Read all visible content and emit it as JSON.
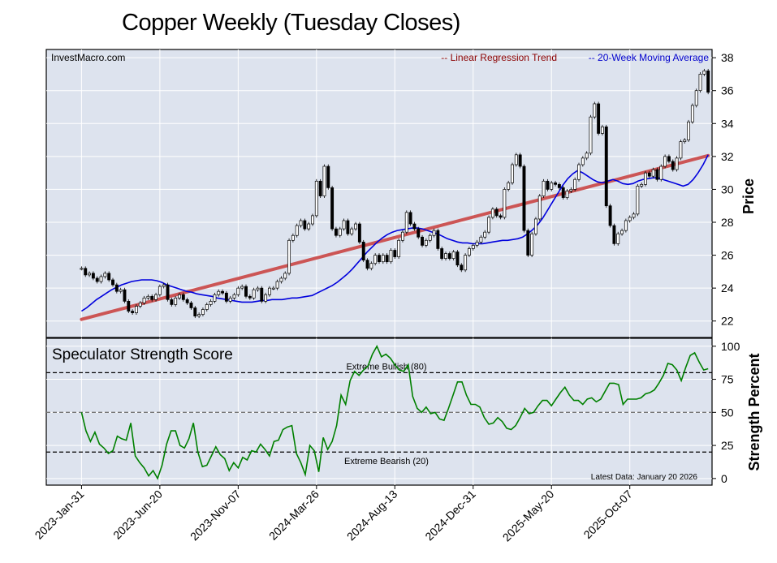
{
  "title": "Copper Weekly (Tuesday Closes)",
  "watermark": "InvestMacro.com",
  "legend": {
    "regression": "-- Linear Regression Trend",
    "moving_average": "-- 20-Week Moving Average",
    "regression_color": "#8b0000",
    "moving_average_color": "#0000cc"
  },
  "latest_data": "Latest Data: January 20 2026",
  "chart_data": [
    {
      "type": "candlestick",
      "ylabel": "Price",
      "ylim": [
        21,
        38.5
      ],
      "y_ticks": [
        22,
        24,
        26,
        28,
        30,
        32,
        34,
        36,
        38
      ],
      "x_ticks": [
        "2023-Jan-31",
        "2023-Jun-20",
        "2023-Nov-07",
        "2024-Mar-26",
        "2024-Aug-13",
        "2024-Dec-31",
        "2025-May-20",
        "2025-Oct-07"
      ],
      "x_tick_weeks": [
        0,
        20,
        40,
        60,
        80,
        100,
        120,
        140
      ],
      "x_range": [
        -9,
        161
      ],
      "closes": [
        25.2,
        24.8,
        24.9,
        24.6,
        24.4,
        24.7,
        24.9,
        24.5,
        24.2,
        23.8,
        23.9,
        23.2,
        22.6,
        22.5,
        22.9,
        23.1,
        23.4,
        23.5,
        23.3,
        23.6,
        24.1,
        24.2,
        23.3,
        23.0,
        23.4,
        23.6,
        23.3,
        23.1,
        22.8,
        22.3,
        22.4,
        22.7,
        23.0,
        23.2,
        23.6,
        23.8,
        23.7,
        23.2,
        23.4,
        23.6,
        24.0,
        24.1,
        23.5,
        23.4,
        23.9,
        24.0,
        23.2,
        23.6,
        24.0,
        24.0,
        24.4,
        24.6,
        24.9,
        26.9,
        27.2,
        27.8,
        28.1,
        27.6,
        27.9,
        28.4,
        30.5,
        29.6,
        31.4,
        30.1,
        27.6,
        27.2,
        27.6,
        28.1,
        27.3,
        27.6,
        27.9,
        26.8,
        25.7,
        25.2,
        25.5,
        26.0,
        25.6,
        26.0,
        25.6,
        26.3,
        25.9,
        26.9,
        27.4,
        28.6,
        27.9,
        27.6,
        27.1,
        26.6,
        26.9,
        27.2,
        27.5,
        26.4,
        25.8,
        26.1,
        25.8,
        26.2,
        25.4,
        25.1,
        26.0,
        26.4,
        26.6,
        26.8,
        27.1,
        27.4,
        28.3,
        28.8,
        28.4,
        28.3,
        30.0,
        30.4,
        31.5,
        32.1,
        31.4,
        27.5,
        26.0,
        27.3,
        28.2,
        29.6,
        30.5,
        30.0,
        30.4,
        30.3,
        30.1,
        29.5,
        29.9,
        30.0,
        30.6,
        31.5,
        31.9,
        32.2,
        34.4,
        35.2,
        33.4,
        33.8,
        29.0,
        27.8,
        26.7,
        27.3,
        27.5,
        28.1,
        28.3,
        28.5,
        30.2,
        30.3,
        31.0,
        30.8,
        31.2,
        30.6,
        31.4,
        32.0,
        31.7,
        31.2,
        31.9,
        32.9,
        33.0,
        34.1,
        35.1,
        36.0,
        37.0,
        37.2,
        35.9
      ],
      "moving_average": [
        22.6,
        22.8,
        23.05,
        23.3,
        23.5,
        23.7,
        23.9,
        24.05,
        24.2,
        24.3,
        24.4,
        24.45,
        24.5,
        24.5,
        24.5,
        24.45,
        24.35,
        24.2,
        24.1,
        24.0,
        23.9,
        23.8,
        23.75,
        23.65,
        23.6,
        23.55,
        23.5,
        23.4,
        23.35,
        23.3,
        23.25,
        23.2,
        23.15,
        23.15,
        23.15,
        23.2,
        23.25,
        23.25,
        23.3,
        23.3,
        23.3,
        23.35,
        23.4,
        23.4,
        23.45,
        23.5,
        23.55,
        23.7,
        23.85,
        24.0,
        24.15,
        24.35,
        24.6,
        24.85,
        25.15,
        25.5,
        25.85,
        26.2,
        26.5,
        26.8,
        27.05,
        27.25,
        27.4,
        27.5,
        27.55,
        27.6,
        27.65,
        27.65,
        27.6,
        27.5,
        27.4,
        27.3,
        27.15,
        27.0,
        26.9,
        26.8,
        26.75,
        26.75,
        26.7,
        26.7,
        26.7,
        26.75,
        26.8,
        26.85,
        26.9,
        26.9,
        26.95,
        27.0,
        27.1,
        27.3,
        27.55,
        27.85,
        28.25,
        28.75,
        29.25,
        29.75,
        30.25,
        30.65,
        30.95,
        31.15,
        31.0,
        30.8,
        30.6,
        30.45,
        30.4,
        30.5,
        30.6,
        30.5,
        30.35,
        30.3,
        30.35,
        30.5,
        30.6,
        30.65,
        30.7,
        30.7,
        30.6,
        30.5,
        30.4,
        30.3,
        30.2,
        30.3,
        30.6,
        31.0,
        31.5,
        32.1
      ],
      "regression_start": 22.1,
      "regression_end": 32.05
    },
    {
      "type": "line",
      "title": "Speculator Strength Score",
      "ylabel": "Strength Percent",
      "ylim": [
        -5,
        106
      ],
      "y_ticks": [
        0,
        25,
        50,
        75,
        100
      ],
      "y_tick_labels": [
        "0",
        "25",
        "50",
        "75",
        "100"
      ],
      "reference_lines": [
        {
          "value": 80,
          "label": "Extreme Bullish (80)"
        },
        {
          "value": 50,
          "label": ""
        },
        {
          "value": 20,
          "label": "Extreme Bearish (20)"
        }
      ],
      "values": [
        50,
        36,
        28,
        35,
        26,
        23,
        19,
        21,
        32,
        30,
        29,
        42,
        17,
        12,
        8,
        2,
        6,
        0,
        10,
        26,
        36,
        36,
        25,
        23,
        30,
        42,
        20,
        9,
        10,
        17,
        24,
        18,
        15,
        6,
        12,
        8,
        16,
        14,
        21,
        20,
        26,
        22,
        17,
        28,
        29,
        37,
        39,
        40,
        19,
        12,
        3,
        25,
        21,
        5,
        31,
        22,
        28,
        40,
        63,
        56,
        74,
        81,
        78,
        82,
        85,
        94,
        100,
        92,
        94,
        91,
        86,
        82,
        81,
        86,
        62,
        53,
        50,
        54,
        49,
        50,
        45,
        44,
        53,
        63,
        73,
        73,
        63,
        56,
        56,
        54,
        46,
        41,
        42,
        46,
        43,
        38,
        37,
        40,
        46,
        53,
        49,
        50,
        55,
        59,
        59,
        55,
        60,
        65,
        69,
        63,
        59,
        59,
        56,
        60,
        61,
        58,
        60,
        66,
        72,
        72,
        71,
        56,
        60,
        60,
        60,
        61,
        64,
        65,
        67,
        72,
        78,
        87,
        86,
        82,
        74,
        84,
        93,
        95,
        88,
        82,
        83
      ],
      "color": "#008000"
    }
  ]
}
